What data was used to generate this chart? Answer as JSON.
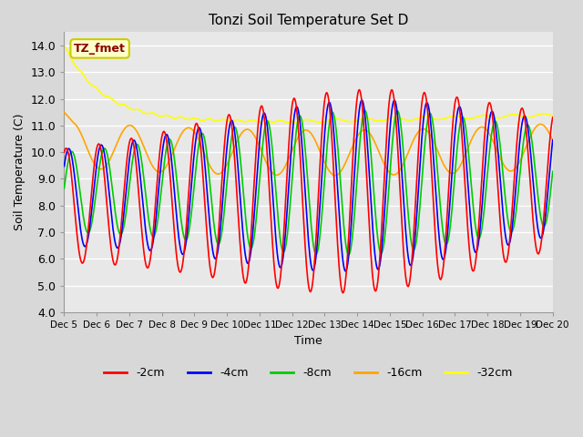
{
  "title": "Tonzi Soil Temperature Set D",
  "xlabel": "Time",
  "ylabel": "Soil Temperature (C)",
  "ylim": [
    4.0,
    14.5
  ],
  "yticks": [
    4.0,
    5.0,
    6.0,
    7.0,
    8.0,
    9.0,
    10.0,
    11.0,
    12.0,
    13.0,
    14.0
  ],
  "bg_color": "#e8e8e8",
  "annotation_text": "TZ_fmet",
  "annotation_color": "#8B0000",
  "annotation_bg": "#ffffcc",
  "legend_labels": [
    "-2cm",
    "-4cm",
    "-8cm",
    "-16cm",
    "-32cm"
  ],
  "line_colors": [
    "#ff0000",
    "#0000ff",
    "#00cc00",
    "#ffa500",
    "#ffff00"
  ],
  "line_width": 1.2,
  "days": 15,
  "start_day": 5,
  "n_points": 721
}
